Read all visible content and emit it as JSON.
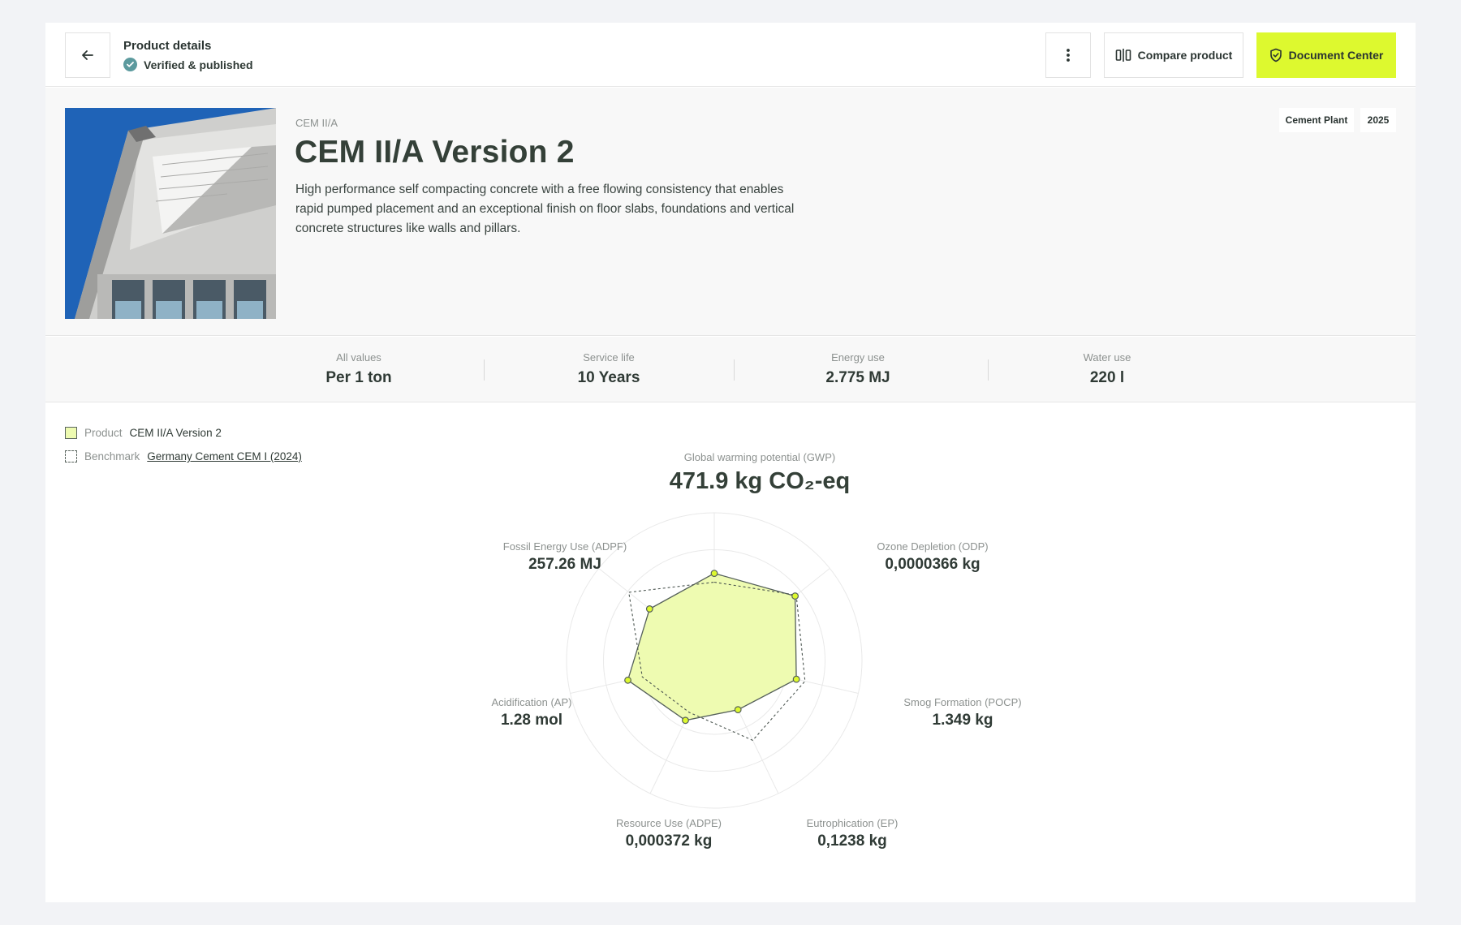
{
  "header": {
    "title": "Product details",
    "status": "Verified & published",
    "compare_label": "Compare product",
    "document_label": "Document Center"
  },
  "product": {
    "category": "CEM II/A",
    "title": "CEM II/A Version 2",
    "description": "High performance self compacting concrete with a free flowing consistency that enables rapid pumped placement and an exceptional finish on floor slabs, foundations and vertical concrete structures like walls and pillars.",
    "tags": [
      "Cement Plant",
      "2025"
    ]
  },
  "stats": [
    {
      "label": "All values",
      "value": "Per 1 ton"
    },
    {
      "label": "Service life",
      "value": "10 Years"
    },
    {
      "label": "Energy use",
      "value": "2.775 MJ"
    },
    {
      "label": "Water use",
      "value": "220 l"
    }
  ],
  "legend": {
    "product_key": "Product",
    "product_value": "CEM II/A Version 2",
    "benchmark_key": "Benchmark",
    "benchmark_value": "Germany Cement CEM I (2024)"
  },
  "colors": {
    "accent": "#ddf92f",
    "product_fill": "#eefbb1",
    "verified": "#5c9a9e",
    "text_dark": "#2f3a35",
    "text_muted": "#8c918f"
  },
  "metrics": [
    {
      "label": "Global warming potential (GWP)",
      "value": "471.9 kg CO₂-eq"
    },
    {
      "label": "Ozone Depletion (ODP)",
      "value": "0,0000366 kg"
    },
    {
      "label": "Smog Formation (POCP)",
      "value": "1.349 kg"
    },
    {
      "label": "Eutrophication (EP)",
      "value": "0,1238 kg"
    },
    {
      "label": "Resource Use (ADPE)",
      "value": "0,000372 kg"
    },
    {
      "label": "Acidification (AP)",
      "value": "1.28 mol"
    },
    {
      "label": "Fossil Energy Use (ADPF)",
      "value": "257.26 MJ"
    }
  ],
  "chart_data": {
    "type": "radar",
    "axes": [
      "Global warming potential (GWP)",
      "Ozone Depletion (ODP)",
      "Smog Formation (POCP)",
      "Eutrophication (EP)",
      "Resource Use (ADPE)",
      "Acidification (AP)",
      "Fossil Energy Use (ADPF)"
    ],
    "scale_max": 1.0,
    "series": [
      {
        "name": "CEM II/A Version 2",
        "values": [
          0.59,
          0.7,
          0.57,
          0.37,
          0.45,
          0.6,
          0.56
        ]
      },
      {
        "name": "Germany Cement CEM I (2024)",
        "values": [
          0.53,
          0.71,
          0.63,
          0.6,
          0.39,
          0.5,
          0.74
        ]
      }
    ],
    "grid": true
  }
}
